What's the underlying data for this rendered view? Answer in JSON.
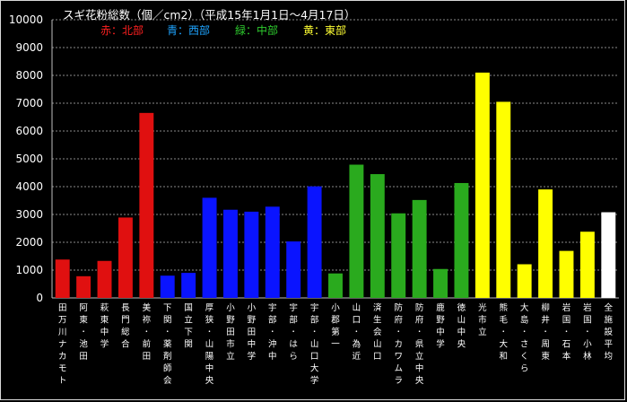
{
  "chart_data": {
    "type": "bar",
    "title": "スギ花粉総数（個／cm2）（平成15年1月1日～4月17日）",
    "legend": [
      {
        "label": "赤：北部",
        "color": "#ff2020"
      },
      {
        "label": "青：西部",
        "color": "#1ea4ff"
      },
      {
        "label": "緑：中部",
        "color": "#2ecc2e"
      },
      {
        "label": "黄：東部",
        "color": "#ffff33"
      }
    ],
    "ylim": [
      0,
      10000
    ],
    "yticks": [
      0,
      1000,
      2000,
      3000,
      4000,
      5000,
      6000,
      7000,
      8000,
      9000,
      10000
    ],
    "grid": true,
    "categories": [
      "田万川ナカモト",
      "阿東・池田",
      "萩東中学",
      "長門総合",
      "美祢・前田",
      "下関・薬剤師会",
      "国立下関",
      "厚狭・山陽中央",
      "小野田市立",
      "小野田中学",
      "宇部・沖中",
      "宇部・はら",
      "宇部・山口大学",
      "小郡第一",
      "山口・為近",
      "済生会山口",
      "防府・カワムラ",
      "防府・県立中央",
      "鹿野中学",
      "徳山中央",
      "光市立",
      "熊毛・大和",
      "大島・さくら",
      "柳井・周東",
      "岩国・石本",
      "岩国・小林",
      "全施設平均"
    ],
    "values": [
      1380,
      780,
      1330,
      2890,
      6650,
      800,
      900,
      3600,
      3170,
      3100,
      3280,
      2030,
      4010,
      880,
      4790,
      4450,
      3040,
      3520,
      1040,
      4130,
      8100,
      7050,
      1210,
      3900,
      1690,
      2380,
      3080
    ],
    "colors": [
      "#e01010",
      "#e01010",
      "#e01010",
      "#e01010",
      "#e01010",
      "#0a14ff",
      "#0a14ff",
      "#0a14ff",
      "#0a14ff",
      "#0a14ff",
      "#0a14ff",
      "#0a14ff",
      "#0a14ff",
      "#2aaa1e",
      "#2aaa1e",
      "#2aaa1e",
      "#2aaa1e",
      "#2aaa1e",
      "#2aaa1e",
      "#2aaa1e",
      "#ffff00",
      "#ffff00",
      "#ffff00",
      "#ffff00",
      "#ffff00",
      "#ffff00",
      "#ffffff"
    ]
  }
}
